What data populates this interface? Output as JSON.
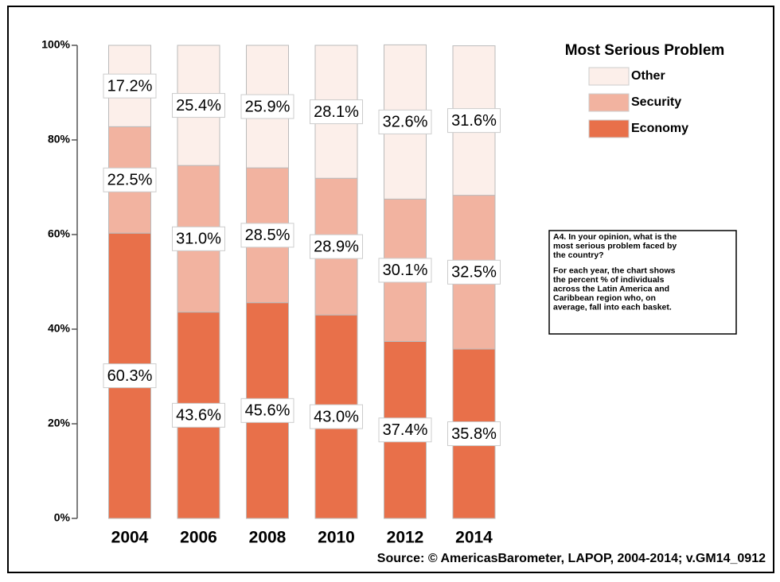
{
  "chart_data": {
    "type": "stacked_bar",
    "categories": [
      "2004",
      "2006",
      "2008",
      "2010",
      "2012",
      "2014"
    ],
    "series": [
      {
        "name": "Economy",
        "color": "#e8704a",
        "values": [
          60.3,
          43.6,
          45.6,
          43.0,
          37.4,
          35.8
        ],
        "value_labels": [
          "60.3%",
          "43.6%",
          "45.6%",
          "43.0%",
          "37.4%",
          "35.8%"
        ]
      },
      {
        "name": "Security",
        "color": "#f2b3a0",
        "values": [
          22.5,
          31.0,
          28.5,
          28.9,
          30.1,
          32.5
        ],
        "value_labels": [
          "22.5%",
          "31.0%",
          "28.5%",
          "28.9%",
          "30.1%",
          "32.5%"
        ]
      },
      {
        "name": "Other",
        "color": "#fcefea",
        "values": [
          17.2,
          25.4,
          25.9,
          28.1,
          32.6,
          31.6
        ],
        "value_labels": [
          "17.2%",
          "25.4%",
          "25.9%",
          "28.1%",
          "32.6%",
          "31.6%"
        ]
      }
    ],
    "ylim": [
      0,
      100
    ],
    "yticks": [
      {
        "value": 0,
        "label": "0%"
      },
      {
        "value": 20,
        "label": "20%"
      },
      {
        "value": 40,
        "label": "40%"
      },
      {
        "value": 60,
        "label": "60%"
      },
      {
        "value": 80,
        "label": "80%"
      },
      {
        "value": 100,
        "label": "100%"
      }
    ],
    "legend_title": "Most Serious Problem",
    "legend_position": "upper right",
    "note": [
      "A4. In your opinion, what is the",
      "most serious problem faced by",
      "the country?",
      "For each year, the chart shows",
      "the percent % of individuals",
      "across the Latin America and",
      "Caribbean region who, on",
      "average, fall into each basket."
    ],
    "source": "Source: © AmericasBarometer, LAPOP, 2004-2014; v.GM14_0912"
  }
}
